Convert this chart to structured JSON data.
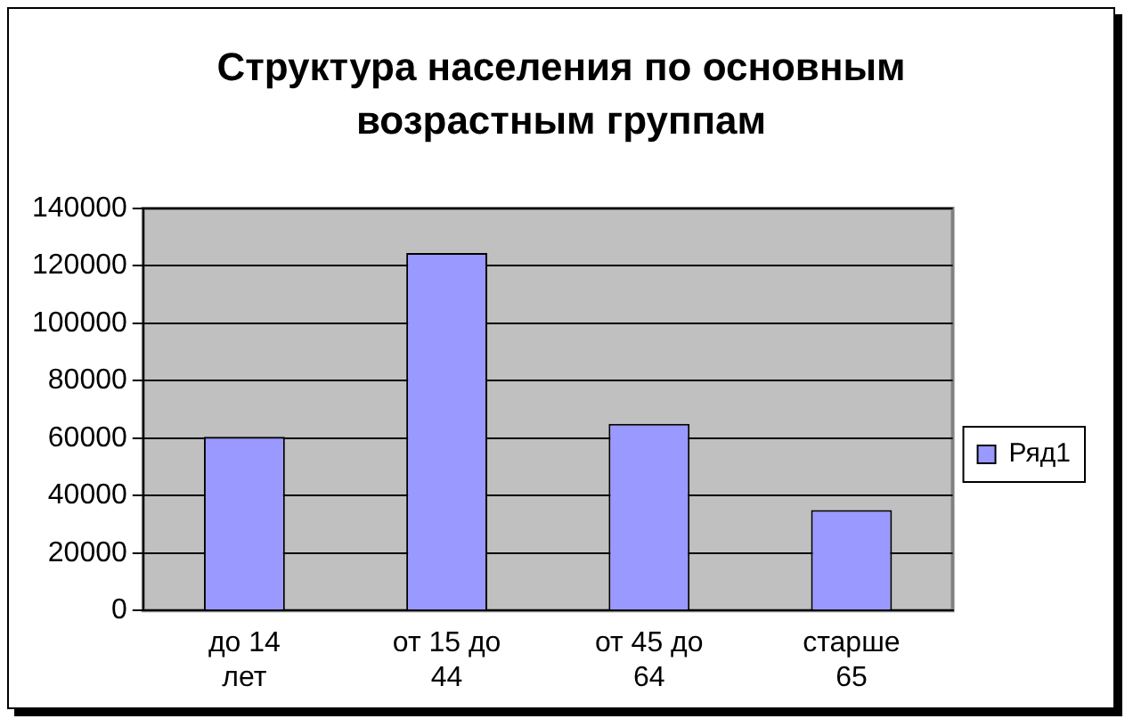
{
  "chart_data": {
    "type": "bar",
    "title": "Структура населения по основным возрастным группам",
    "categories": [
      "до 14 лет",
      "от 15 до 44",
      "от 45 до 64",
      "старше 65"
    ],
    "series": [
      {
        "name": "Ряд1",
        "color": "#9999ff",
        "values": [
          60500,
          124500,
          65000,
          35000
        ]
      }
    ],
    "ylim": [
      0,
      140000
    ],
    "yticks": [
      0,
      20000,
      40000,
      60000,
      80000,
      100000,
      120000,
      140000
    ],
    "grid": "y",
    "legend": "right"
  }
}
